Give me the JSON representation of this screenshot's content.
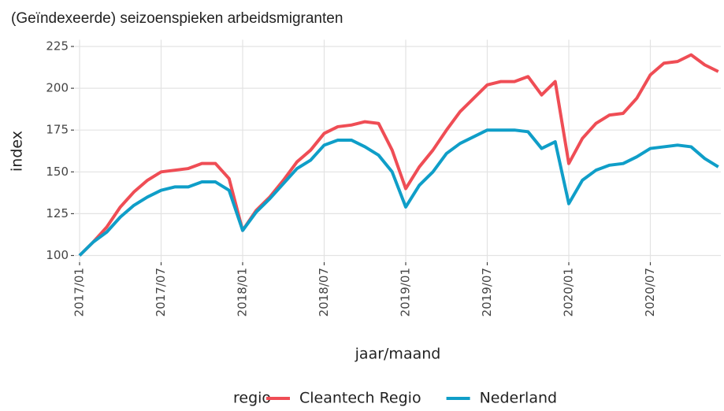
{
  "chart_data": {
    "type": "line",
    "title": "(Geïndexeerde) seizoenspieken arbeidsmigranten",
    "x_label": "jaar/maand",
    "y_label": "index",
    "legend_title": "regio",
    "legend": "bottom",
    "grid": true,
    "categories": [
      "2017/01",
      null,
      null,
      null,
      null,
      null,
      "2017/07",
      null,
      null,
      null,
      null,
      null,
      "2018/01",
      null,
      null,
      null,
      null,
      null,
      "2018/07",
      null,
      null,
      null,
      null,
      null,
      "2019/01",
      null,
      null,
      null,
      null,
      null,
      "2019/07",
      null,
      null,
      null,
      null,
      null,
      "2020/01",
      null,
      null,
      null,
      null,
      null,
      "2020/07",
      null,
      null,
      null,
      null,
      null
    ],
    "series": [
      {
        "name": "Cleantech Regio",
        "color": "#ef4d55",
        "values": [
          100,
          108,
          117,
          129,
          138,
          145,
          150,
          151,
          152,
          155,
          155,
          146,
          115,
          127,
          135,
          145,
          156,
          163,
          173,
          177,
          178,
          180,
          179,
          163,
          140,
          153,
          163,
          175,
          186,
          194,
          202,
          204,
          204,
          207,
          196,
          204,
          155,
          170,
          179,
          184,
          185,
          194,
          208,
          215,
          216,
          220,
          214,
          210
        ]
      },
      {
        "name": "Nederland",
        "color": "#0f9ec8",
        "values": [
          100,
          108,
          114,
          123,
          130,
          135,
          139,
          141,
          141,
          144,
          144,
          139,
          115,
          126,
          134,
          143,
          152,
          157,
          166,
          169,
          169,
          165,
          160,
          150,
          129,
          142,
          150,
          161,
          167,
          171,
          175,
          175,
          175,
          174,
          164,
          168,
          131,
          145,
          151,
          154,
          155,
          159,
          164,
          165,
          166,
          165,
          158,
          153
        ]
      }
    ],
    "ylim": [
      96,
      229
    ],
    "yticks": [
      100,
      125,
      150,
      175,
      200,
      225
    ]
  }
}
